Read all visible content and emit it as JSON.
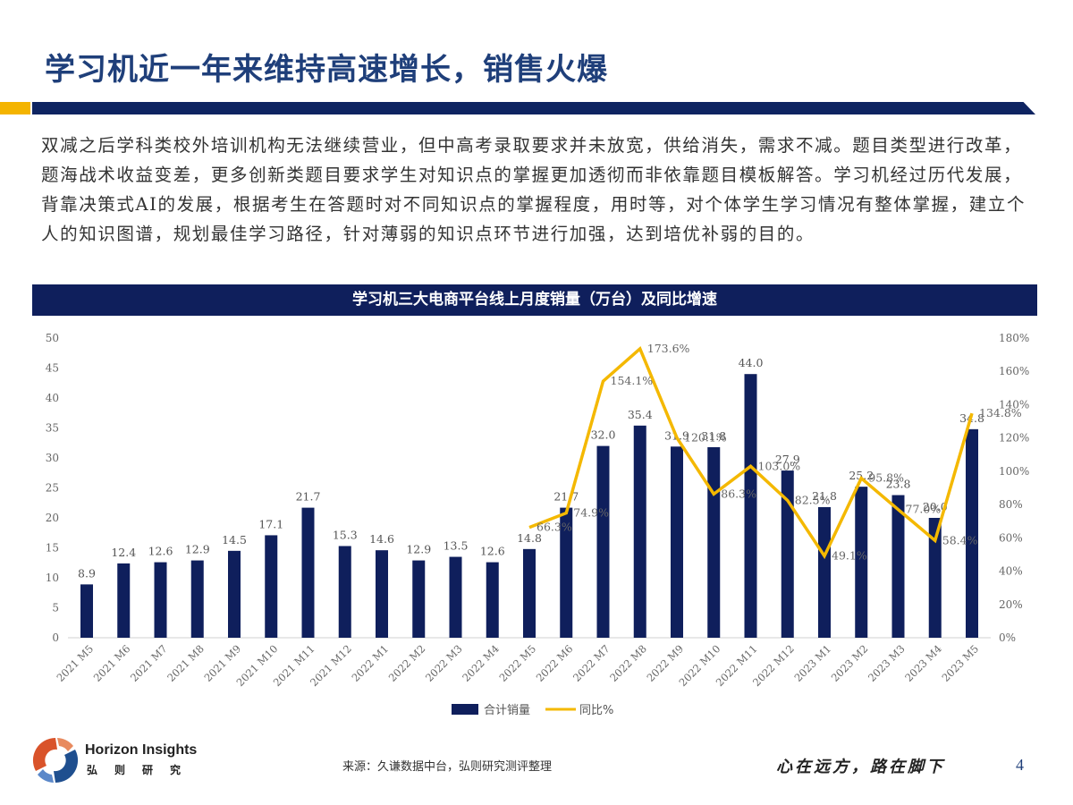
{
  "slide": {
    "title": "学习机近一年来维持高速增长，销售火爆",
    "body": "双减之后学科类校外培训机构无法继续营业，但中高考录取要求并未放宽，供给消失，需求不减。题目类型进行改革，题海战术收益变差，更多创新类题目要求学生对知识点的掌握更加透彻而非依靠题目模板解答。学习机经过历代发展，背靠决策式AI的发展，根据考生在答题时对不同知识点的掌握程度，用时等，对个体学生学习情况有整体掌握，建立个人的知识图谱，规划最佳学习路径，针对薄弱的知识点环节进行加强，达到培优补弱的目的。",
    "chart_header": "学习机三大电商平台线上月度销量（万台）及同比增速",
    "source": "来源：久谦数据中台，弘则研究测评整理",
    "motto": "心在远方，路在脚下",
    "page_number": "4",
    "logo": {
      "en": "Horizon Insights",
      "cn": "弘则研究"
    }
  },
  "colors": {
    "bar": "#0f1f5c",
    "line": "#f4b800",
    "title": "#1f3f7a",
    "accent_yellow": "#f4b400",
    "accent_navy": "#0e2461"
  },
  "chart_data": {
    "type": "bar+line",
    "title": "学习机三大电商平台线上月度销量（万台）及同比增速",
    "categories": [
      "2021 M5",
      "2021 M6",
      "2021 M7",
      "2021 M8",
      "2021 M9",
      "2021 M10",
      "2021 M11",
      "2021 M12",
      "2022 M1",
      "2022 M2",
      "2022 M3",
      "2022 M4",
      "2022 M5",
      "2022 M6",
      "2022 M7",
      "2022 M8",
      "2022 M9",
      "2022 M10",
      "2022 M11",
      "2022 M12",
      "2023 M1",
      "2023 M2",
      "2023 M3",
      "2023 M4",
      "2023 M5"
    ],
    "series": [
      {
        "name": "合计销量",
        "type": "bar",
        "axis": "left",
        "values": [
          8.9,
          12.4,
          12.6,
          12.9,
          14.5,
          17.1,
          21.7,
          15.3,
          14.6,
          12.9,
          13.5,
          12.6,
          14.8,
          21.7,
          32.0,
          35.4,
          31.9,
          31.8,
          44.0,
          27.9,
          21.8,
          25.2,
          23.8,
          20.0,
          34.8
        ]
      },
      {
        "name": "同比%",
        "type": "line",
        "axis": "right",
        "values": [
          null,
          null,
          null,
          null,
          null,
          null,
          null,
          null,
          null,
          null,
          null,
          null,
          66.3,
          74.9,
          154.1,
          173.6,
          120.1,
          86.3,
          103.0,
          82.5,
          49.1,
          95.8,
          77.0,
          58.4,
          134.8
        ]
      }
    ],
    "y_left": {
      "min": 0,
      "max": 50,
      "ticks": [
        0,
        5,
        10,
        15,
        20,
        25,
        30,
        35,
        40,
        45,
        50
      ]
    },
    "y_right": {
      "min": 0,
      "max": 180,
      "ticks": [
        "0%",
        "20%",
        "40%",
        "60%",
        "80%",
        "100%",
        "120%",
        "140%",
        "160%",
        "180%"
      ]
    },
    "legend": [
      "合计销量",
      "同比%"
    ],
    "legend_position": "bottom",
    "grid": false
  }
}
